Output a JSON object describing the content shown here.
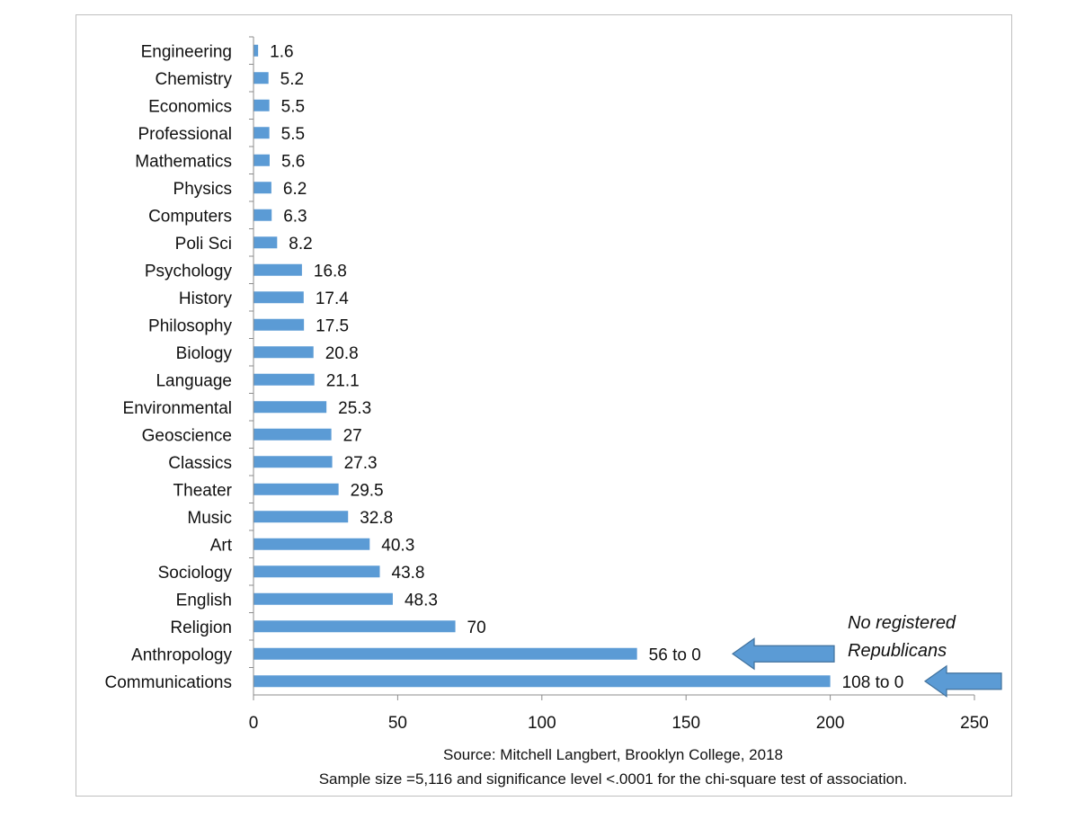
{
  "chart_data": {
    "type": "bar",
    "orientation": "horizontal",
    "categories": [
      "Engineering",
      "Chemistry",
      "Economics",
      "Professional",
      "Mathematics",
      "Physics",
      "Computers",
      "Poli Sci",
      "Psychology",
      "History",
      "Philosophy",
      "Biology",
      "Language",
      "Environmental",
      "Geoscience",
      "Classics",
      "Theater",
      "Music",
      "Art",
      "Sociology",
      "English",
      "Religion",
      "Anthropology",
      "Communications"
    ],
    "values": [
      1.6,
      5.2,
      5.5,
      5.5,
      5.6,
      6.2,
      6.3,
      8.2,
      16.8,
      17.4,
      17.5,
      20.8,
      21.1,
      25.3,
      27,
      27.3,
      29.5,
      32.8,
      40.3,
      43.8,
      48.3,
      70,
      133,
      200
    ],
    "data_labels": [
      "1.6",
      "5.2",
      "5.5",
      "5.5",
      "5.6",
      "6.2",
      "6.3",
      "8.2",
      "16.8",
      "17.4",
      "17.5",
      "20.8",
      "21.1",
      "25.3",
      "27",
      "27.3",
      "29.5",
      "32.8",
      "40.3",
      "43.8",
      "48.3",
      "70",
      "56 to 0",
      "108 to 0"
    ],
    "xlim": [
      0,
      250
    ],
    "xticks": [
      "0",
      "50",
      "100",
      "150",
      "200",
      "250"
    ],
    "bar_color": "#5b9bd5",
    "grid": false,
    "annotation": {
      "line1": "No registered",
      "line2": "Republicans",
      "arrow_color": "#5b9bd5",
      "targets": [
        "Anthropology",
        "Communications"
      ]
    },
    "source_line1": "Source: Mitchell  Langbert, Brooklyn College,  2018",
    "source_line2": "Sample size =5,116 and significance level <.0001 for the chi-square test of association."
  }
}
